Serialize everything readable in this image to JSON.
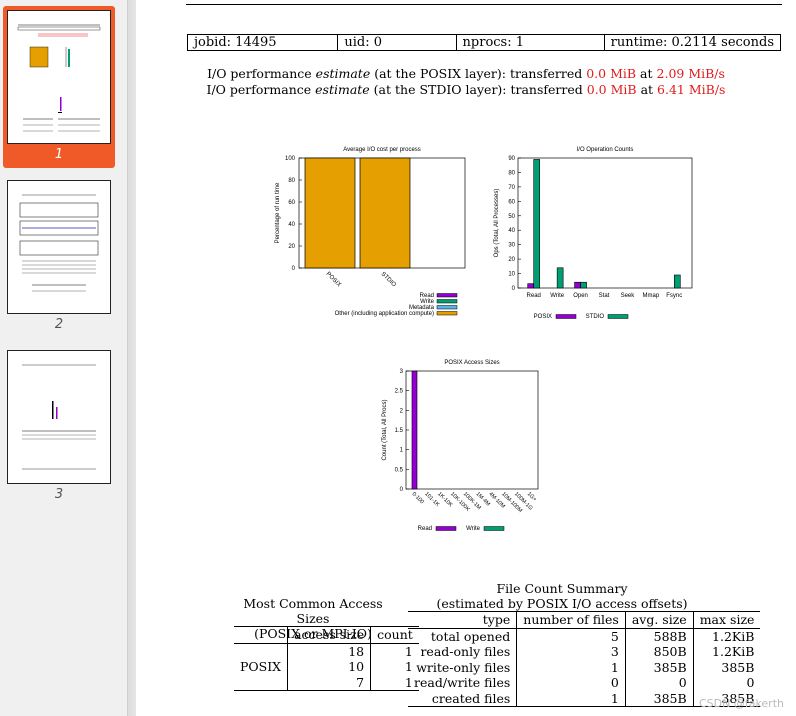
{
  "sidebar": {
    "pages": [
      {
        "label": "1",
        "active": true
      },
      {
        "label": "2",
        "active": false
      },
      {
        "label": "3",
        "active": false
      }
    ]
  },
  "meta": {
    "jobid": "jobid:  14495",
    "uid": "uid:  0",
    "nprocs": "nprocs:  1",
    "runtime": "runtime:  0.2114 seconds"
  },
  "perf": {
    "posix_prefix": "I/O performance ",
    "estimate_word": "estimate",
    "posix_mid": " (at the POSIX layer): transferred ",
    "posix_amount": "0.0 MiB",
    "at_word": " at ",
    "posix_rate": "2.09 MiB/s",
    "stdio_mid": " (at the STDIO layer): transferred ",
    "stdio_amount": "0.0 MiB",
    "stdio_rate": "6.41 MiB/s"
  },
  "colors": {
    "read": "#9400d3",
    "write": "#009e73",
    "metadata": "#56b4e9",
    "other": "#e69f00",
    "highlight": "#e31a1a"
  },
  "chart_data": [
    {
      "type": "bar",
      "title": "Average I/O cost per process",
      "ylabel": "Percentage of run time",
      "ylim": [
        0,
        100
      ],
      "yticks": [
        "0",
        "20",
        "40",
        "60",
        "80",
        "100"
      ],
      "categories": [
        "POSIX",
        "STDIO"
      ],
      "series": [
        {
          "name": "Read",
          "values": [
            0,
            0
          ]
        },
        {
          "name": "Write",
          "values": [
            0,
            0
          ]
        },
        {
          "name": "Metadata",
          "values": [
            0,
            0
          ]
        },
        {
          "name": "Other (including application compute)",
          "values": [
            100,
            100
          ]
        }
      ],
      "legend": "bottom-right"
    },
    {
      "type": "bar",
      "title": "I/O Operation Counts",
      "ylabel": "Ops (Total, All Processes)",
      "ylim": [
        0,
        90
      ],
      "yticks": [
        "0",
        "10",
        "20",
        "30",
        "40",
        "50",
        "60",
        "70",
        "80",
        "90"
      ],
      "categories": [
        "Read",
        "Write",
        "Open",
        "Stat",
        "Seek",
        "Mmap",
        "Fsync"
      ],
      "series": [
        {
          "name": "POSIX",
          "values": [
            3,
            0,
            4,
            0,
            0,
            0,
            0
          ]
        },
        {
          "name": "STDIO",
          "values": [
            89,
            14,
            4,
            0,
            0,
            0,
            9
          ]
        }
      ],
      "legend": "bottom"
    },
    {
      "type": "bar",
      "title": "POSIX Access Sizes",
      "ylabel": "Count (Total, All Procs)",
      "ylim": [
        0,
        3
      ],
      "yticks": [
        "0",
        "0.5",
        "1",
        "1.5",
        "2",
        "2.5",
        "3"
      ],
      "categories": [
        "0-100",
        "101-1K",
        "1K-10K",
        "10K-100K",
        "100K-1M",
        "1M-4M",
        "4M-10M",
        "10M-100M",
        "100M-1G",
        "1G+"
      ],
      "series": [
        {
          "name": "Read",
          "values": [
            3,
            0,
            0,
            0,
            0,
            0,
            0,
            0,
            0,
            0
          ]
        },
        {
          "name": "Write",
          "values": [
            0,
            0,
            0,
            0,
            0,
            0,
            0,
            0,
            0,
            0
          ]
        }
      ],
      "legend": "bottom"
    }
  ],
  "access_sizes": {
    "title1": "Most Common Access Sizes",
    "title2": "(POSIX or MPI-IO)",
    "headers": [
      "access size",
      "count"
    ],
    "group": "POSIX",
    "rows": [
      [
        "18",
        "1"
      ],
      [
        "10",
        "1"
      ],
      [
        "7",
        "1"
      ]
    ]
  },
  "file_count": {
    "title1": "File Count Summary",
    "title2": "(estimated by POSIX I/O access offsets)",
    "headers": [
      "type",
      "number of files",
      "avg. size",
      "max size"
    ],
    "rows": [
      [
        "total opened",
        "5",
        "588B",
        "1.2KiB"
      ],
      [
        "read-only files",
        "3",
        "850B",
        "1.2KiB"
      ],
      [
        "write-only files",
        "1",
        "385B",
        "385B"
      ],
      [
        "read/write files",
        "0",
        "0",
        "0"
      ],
      [
        "created files",
        "1",
        "385B",
        "385B"
      ]
    ]
  },
  "watermark": "CSDN @fakerth"
}
